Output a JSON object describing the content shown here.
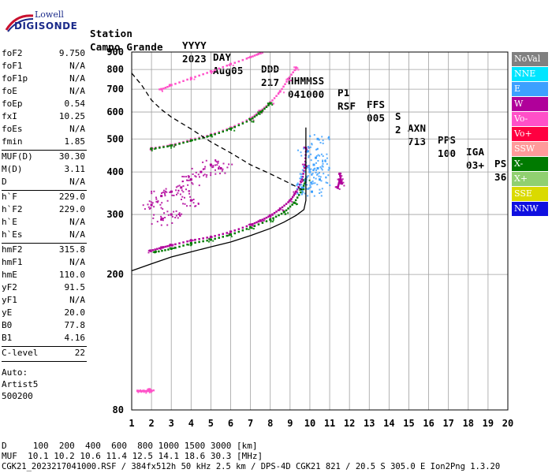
{
  "logo": {
    "top": "Lowell",
    "bottom": "DIGISONDE"
  },
  "header": {
    "row1": [
      "Station",
      "YYYY",
      "DAY",
      "DDD",
      "HHMMSS",
      "P1",
      "FFS",
      "S",
      "AXN",
      "PPS",
      "IGA",
      "PS"
    ],
    "row2": [
      "Campo Grande",
      "2023",
      "Aug05",
      "217",
      "041000",
      "RSF",
      "005",
      "2",
      "713",
      "100",
      "03+",
      "36"
    ]
  },
  "params": {
    "group1": [
      {
        "k": "foF2",
        "v": "9.750"
      },
      {
        "k": "foF1",
        "v": "N/A"
      },
      {
        "k": "foF1p",
        "v": "N/A"
      },
      {
        "k": "foE",
        "v": "N/A"
      },
      {
        "k": "foEp",
        "v": "0.54"
      },
      {
        "k": "fxI",
        "v": "10.25"
      },
      {
        "k": "foEs",
        "v": "N/A"
      },
      {
        "k": "fmin",
        "v": "1.85"
      }
    ],
    "group2": [
      {
        "k": "MUF(D)",
        "v": "30.30"
      },
      {
        "k": "M(D)",
        "v": "3.11"
      },
      {
        "k": "D",
        "v": "N/A"
      }
    ],
    "group3": [
      {
        "k": "h`F",
        "v": "229.0"
      },
      {
        "k": "h`F2",
        "v": "229.0"
      },
      {
        "k": "h`E",
        "v": "N/A"
      },
      {
        "k": "h`Es",
        "v": "N/A"
      }
    ],
    "group4": [
      {
        "k": "hmF2",
        "v": "315.8"
      },
      {
        "k": "hmF1",
        "v": "N/A"
      },
      {
        "k": "hmE",
        "v": "110.0"
      },
      {
        "k": "yF2",
        "v": "91.5"
      },
      {
        "k": "yF1",
        "v": "N/A"
      },
      {
        "k": "yE",
        "v": "20.0"
      },
      {
        "k": "B0",
        "v": "77.8"
      },
      {
        "k": "B1",
        "v": "4.16"
      }
    ],
    "group5": [
      {
        "k": "C-level",
        "v": "22"
      }
    ],
    "auto": [
      "Auto:",
      "Artist5",
      "500200"
    ]
  },
  "legend": [
    {
      "label": "NoVal",
      "color": "#808080"
    },
    {
      "label": "NNE",
      "color": "#00e5ff"
    },
    {
      "label": "E",
      "color": "#3ca0ff"
    },
    {
      "label": "W",
      "color": "#b0009a"
    },
    {
      "label": "Vo-",
      "color": "#ff50c8"
    },
    {
      "label": "Vo+",
      "color": "#ff0040"
    },
    {
      "label": "SSW",
      "color": "#ff9a9a"
    },
    {
      "label": "X-",
      "color": "#007a00"
    },
    {
      "label": "X+",
      "color": "#90d070"
    },
    {
      "label": "SSE",
      "color": "#dada00"
    },
    {
      "label": "NNW",
      "color": "#1010e0"
    }
  ],
  "bottom": {
    "line1": "D     100  200  400  600  800 1000 1500 3000 [km]",
    "line2": "MUF  10.1 10.2 10.6 11.4 12.5 14.1 18.6 30.3 [MHz]",
    "line3": "CGK21_2023217041000.RSF / 384fx512h 50 kHz 2.5 km / DPS-4D CGK21 821 / 20.5 S 305.0 E Ion2Png 1.3.20"
  },
  "chart_data": {
    "type": "scatter",
    "title": "",
    "xlabel": "",
    "ylabel": "",
    "xlim": [
      1,
      20
    ],
    "ylim": [
      80,
      900
    ],
    "x_ticks": [
      1,
      2,
      3,
      4,
      5,
      6,
      7,
      8,
      9,
      10,
      11,
      12,
      13,
      14,
      15,
      16,
      17,
      18,
      19,
      20
    ],
    "y_ticks": [
      80,
      200,
      300,
      400,
      500,
      600,
      700,
      800,
      900
    ],
    "y_scale": "log",
    "grid": true,
    "series": [
      {
        "name": "",
        "kind": "trace-O",
        "color": "#b0009a",
        "points": [
          [
            1.95,
            235
          ],
          [
            2.5,
            240
          ],
          [
            3,
            244
          ],
          [
            4,
            252
          ],
          [
            5,
            258
          ],
          [
            6,
            267
          ],
          [
            7,
            280
          ],
          [
            7.5,
            288
          ],
          [
            8,
            298
          ],
          [
            8.5,
            312
          ],
          [
            9,
            330
          ],
          [
            9.3,
            350
          ],
          [
            9.6,
            380
          ],
          [
            9.75,
            420
          ],
          [
            9.8,
            470
          ]
        ]
      },
      {
        "name": "",
        "kind": "trace-X",
        "color": "#007a00",
        "points": [
          [
            2.2,
            233
          ],
          [
            3,
            238
          ],
          [
            4,
            247
          ],
          [
            5,
            253
          ],
          [
            6,
            262
          ],
          [
            7,
            275
          ],
          [
            8,
            290
          ],
          [
            8.7,
            305
          ],
          [
            9.2,
            325
          ],
          [
            9.6,
            355
          ],
          [
            9.8,
            380
          ]
        ]
      },
      {
        "name": "",
        "kind": "trace-2hop-O",
        "color": "#ff50c8",
        "points": [
          [
            2,
            470
          ],
          [
            3,
            480
          ],
          [
            4,
            498
          ],
          [
            5,
            515
          ],
          [
            6,
            540
          ],
          [
            7,
            575
          ],
          [
            7.5,
            605
          ],
          [
            8,
            640
          ],
          [
            8.5,
            690
          ],
          [
            8.9,
            750
          ],
          [
            9.3,
            810
          ]
        ]
      },
      {
        "name": "",
        "kind": "trace-2hop-X",
        "color": "#007a00",
        "points": [
          [
            2,
            468
          ],
          [
            3,
            478
          ],
          [
            4,
            495
          ],
          [
            5,
            512
          ],
          [
            6,
            536
          ],
          [
            7,
            570
          ],
          [
            7.5,
            600
          ],
          [
            8,
            636
          ]
        ]
      },
      {
        "name": "",
        "kind": "trace-3hop",
        "color": "#ff50c8",
        "points": [
          [
            2.5,
            700
          ],
          [
            3,
            720
          ],
          [
            4,
            755
          ],
          [
            5,
            790
          ],
          [
            6,
            830
          ],
          [
            7,
            870
          ],
          [
            7.5,
            895
          ]
        ]
      },
      {
        "name": "",
        "kind": "spread-F",
        "color": "#b0009a",
        "points": [
          [
            2,
            320
          ],
          [
            2.5,
            340
          ],
          [
            3,
            350
          ],
          [
            3.5,
            360
          ],
          [
            4,
            380
          ],
          [
            4.5,
            400
          ],
          [
            5,
            420
          ],
          [
            5.5,
            410
          ],
          [
            4,
            330
          ],
          [
            3,
            300
          ],
          [
            2.5,
            290
          ]
        ]
      },
      {
        "name": "",
        "kind": "spread-E",
        "color": "#3ca0ff",
        "points": [
          [
            9.6,
            360
          ],
          [
            9.8,
            380
          ],
          [
            10,
            400
          ],
          [
            10.2,
            420
          ],
          [
            10.4,
            410
          ],
          [
            10.5,
            380
          ],
          [
            10.1,
            350
          ],
          [
            10.3,
            440
          ],
          [
            9.9,
            460
          ],
          [
            10.4,
            500
          ]
        ]
      },
      {
        "name": "",
        "kind": "sporadic",
        "color": "#b0009a",
        "points": [
          [
            11.4,
            360
          ],
          [
            11.5,
            380
          ],
          [
            11.6,
            370
          ],
          [
            11.5,
            395
          ]
        ]
      },
      {
        "name": "",
        "kind": "low-echo",
        "color": "#ff50c8",
        "points": [
          [
            1.3,
            91
          ],
          [
            1.6,
            91
          ],
          [
            2,
            91
          ],
          [
            1.9,
            92
          ]
        ]
      },
      {
        "name": "",
        "kind": "profile",
        "color": "#000000",
        "style": "solid",
        "points": [
          [
            1,
            205
          ],
          [
            2,
            215
          ],
          [
            3,
            225
          ],
          [
            4,
            233
          ],
          [
            5,
            241
          ],
          [
            6,
            249
          ],
          [
            7,
            260
          ],
          [
            8,
            273
          ],
          [
            8.7,
            285
          ],
          [
            9.3,
            298
          ],
          [
            9.7,
            310
          ],
          [
            9.8,
            330
          ],
          [
            9.8,
            540
          ]
        ]
      },
      {
        "name": "",
        "kind": "model",
        "color": "#000000",
        "style": "dashed",
        "points": [
          [
            1,
            780
          ],
          [
            1.5,
            720
          ],
          [
            2,
            650
          ],
          [
            2.5,
            610
          ],
          [
            3,
            580
          ],
          [
            4,
            535
          ],
          [
            5,
            490
          ],
          [
            6,
            455
          ],
          [
            7,
            420
          ],
          [
            8,
            395
          ],
          [
            9,
            370
          ],
          [
            9.6,
            355
          ]
        ]
      }
    ]
  }
}
